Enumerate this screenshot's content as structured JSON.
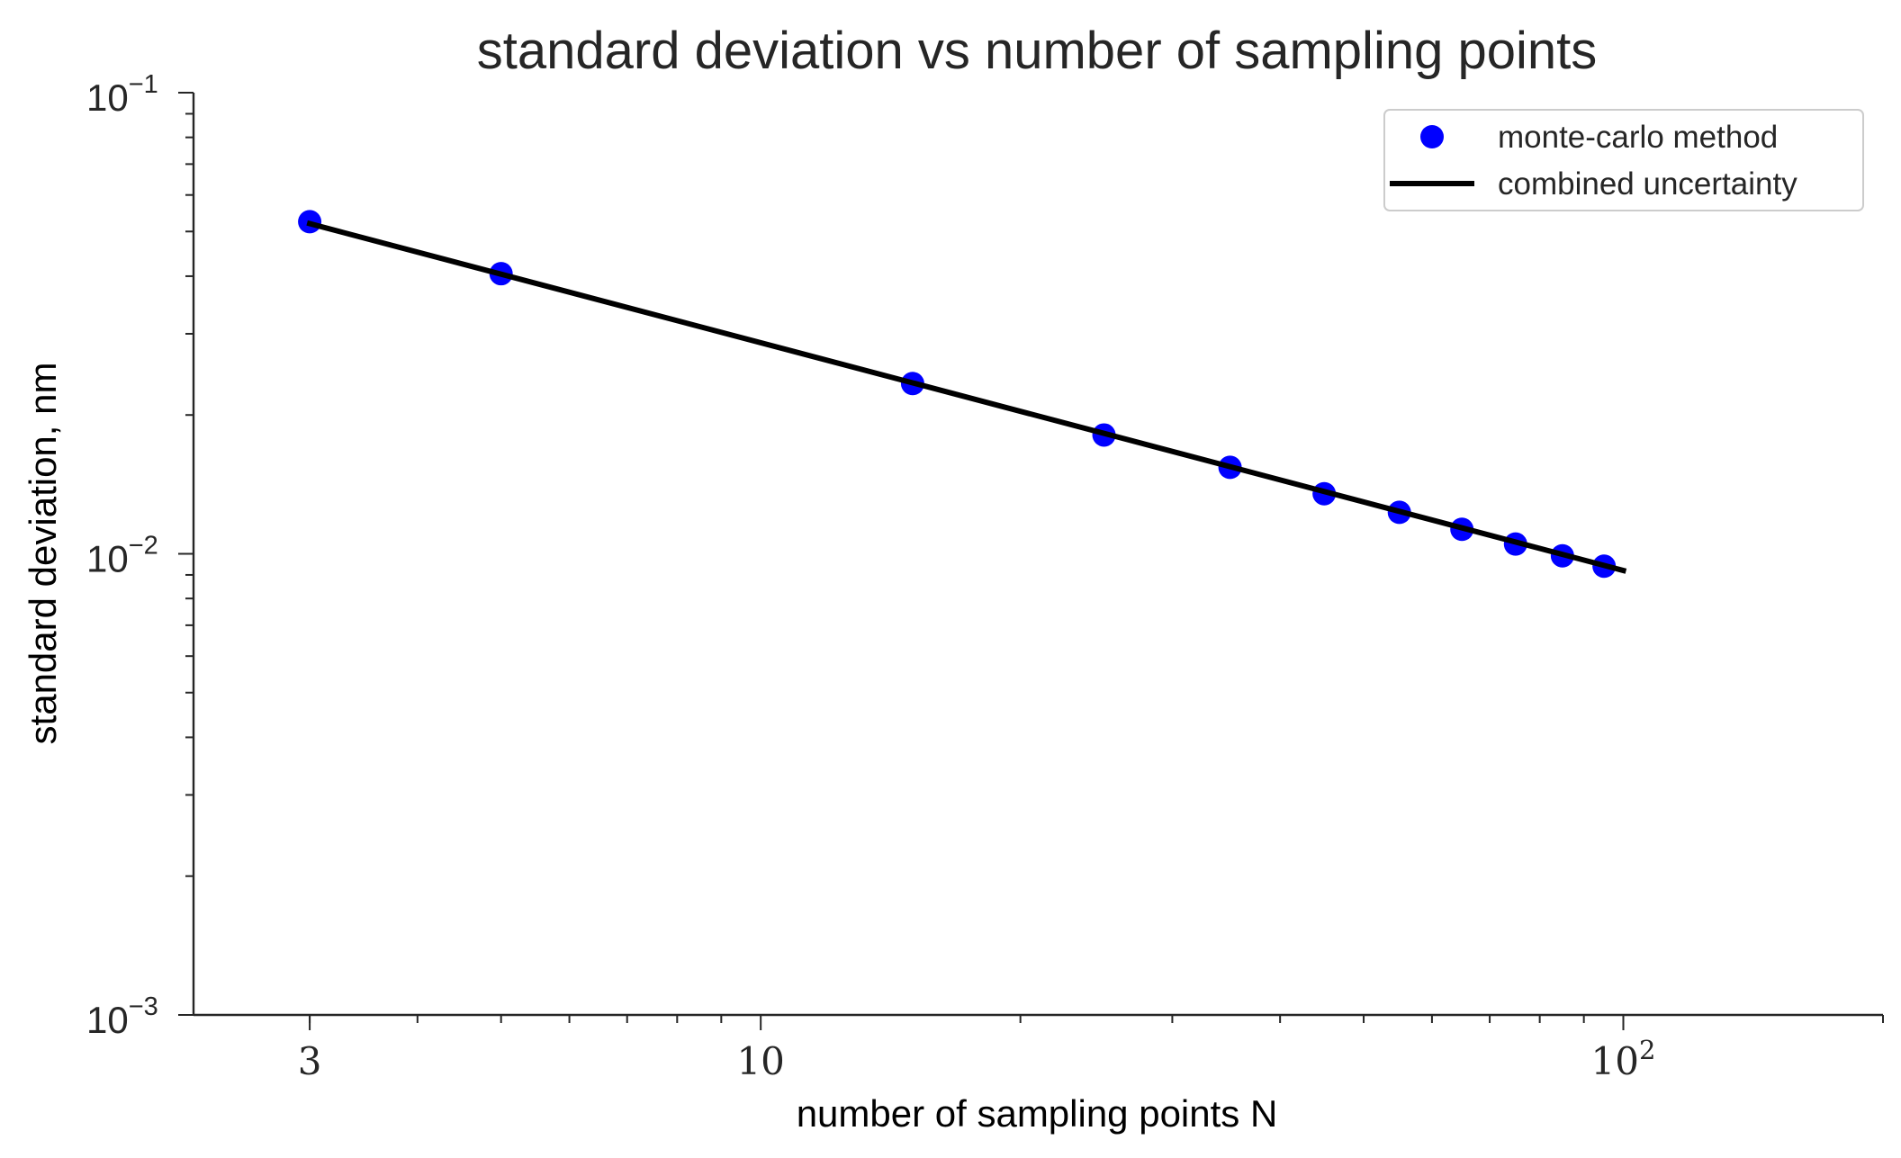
{
  "chart_data": {
    "type": "scatter",
    "title": "standard deviation vs number of sampling points",
    "xlabel": "number of sampling points N",
    "ylabel": "standard deviation, nm",
    "x_scale": "log",
    "y_scale": "log",
    "xlim": [
      2.2,
      200
    ],
    "ylim": [
      0.001,
      0.1
    ],
    "x_ticks": [
      {
        "value": 3,
        "label": "3"
      },
      {
        "value": 10,
        "label": "10"
      },
      {
        "value": 100,
        "label": "10",
        "exponent": "2"
      }
    ],
    "y_ticks": [
      {
        "value": 0.001,
        "label": "10",
        "exponent": "−3"
      },
      {
        "value": 0.01,
        "label": "10",
        "exponent": "−2"
      },
      {
        "value": 0.1,
        "label": "10",
        "exponent": "−1"
      }
    ],
    "grid": false,
    "legend_position": "top-right",
    "series": [
      {
        "name": "monte-carlo method",
        "kind": "scatter",
        "color": "#0000ff",
        "x": [
          3,
          5,
          15,
          25,
          35,
          45,
          55,
          65,
          75,
          85,
          95
        ],
        "y": [
          0.0525,
          0.0405,
          0.0234,
          0.0181,
          0.0154,
          0.0135,
          0.0123,
          0.0113,
          0.0105,
          0.0099,
          0.0094
        ]
      },
      {
        "name": "combined uncertainty",
        "kind": "line",
        "color": "#000000",
        "x": [
          3,
          100
        ],
        "y": [
          0.052,
          0.0092
        ]
      }
    ]
  }
}
